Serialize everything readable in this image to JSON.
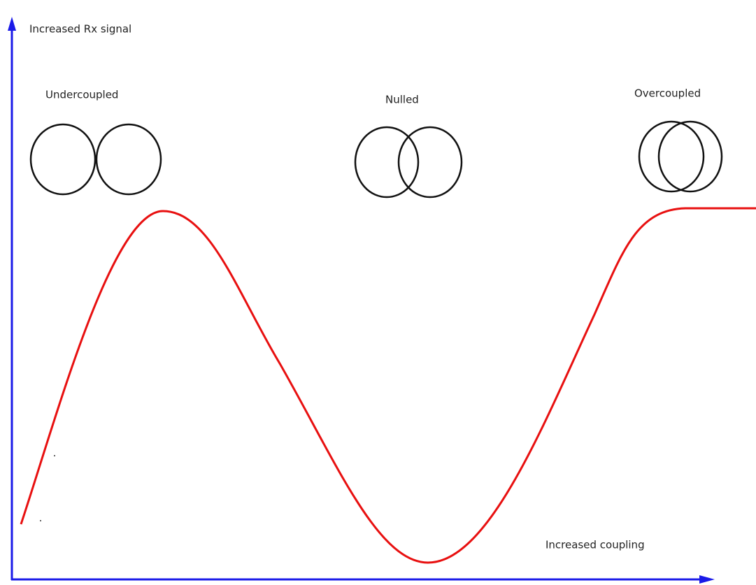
{
  "axes": {
    "y_label": "Increased Rx signal",
    "x_label": "Increased coupling"
  },
  "regions": [
    {
      "label": "Undercoupled"
    },
    {
      "label": "Nulled"
    },
    {
      "label": "Overcoupled"
    }
  ]
}
